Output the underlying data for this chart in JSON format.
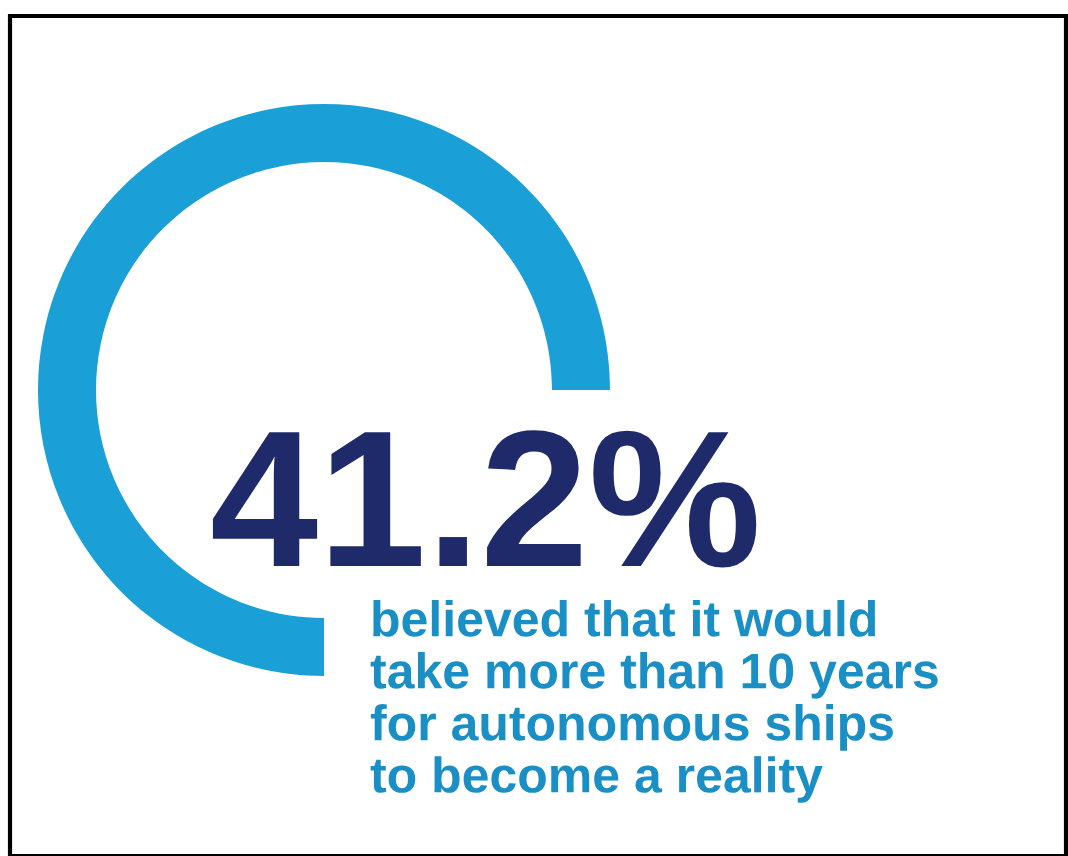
{
  "chart_data": {
    "type": "other",
    "categories": [
      null
    ],
    "values": [
      41.2
    ],
    "value_labels": [
      "41.2%"
    ],
    "annotations": [
      "believed that it would\ntake more than 10 years\nfor autonomous ships\nto become a reality"
    ]
  }
}
